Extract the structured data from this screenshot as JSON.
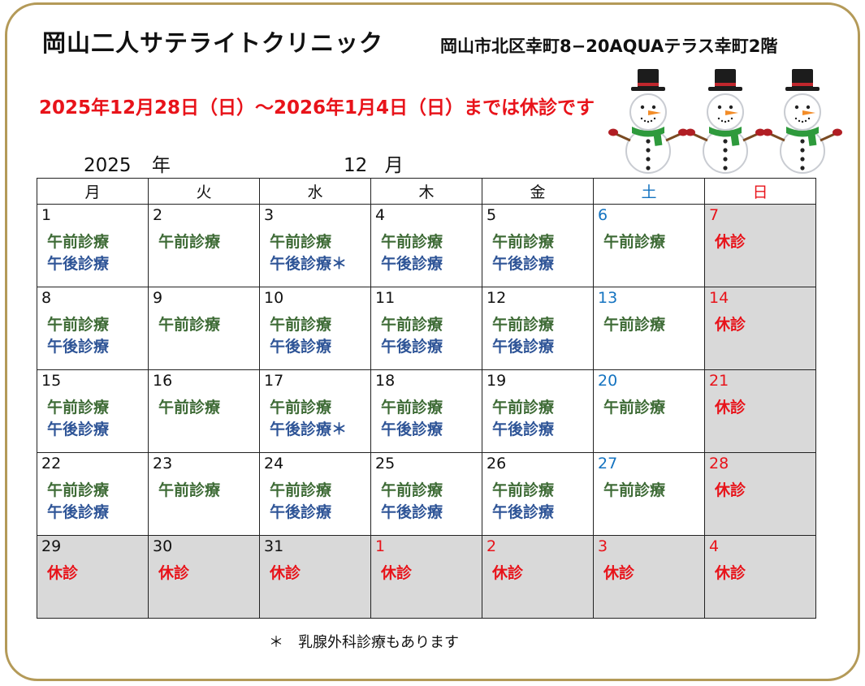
{
  "clinic_name": "岡山二人サテライトクリニック",
  "address": "岡山市北区幸町8−20AQUAテラス幸町2階",
  "notice": "2025年12月28日（日）～2026年1月4日（日）までは休診です",
  "year_num": "2025",
  "year_unit": "年",
  "month_num": "12",
  "month_unit": "月",
  "weekdays": [
    "月",
    "火",
    "水",
    "木",
    "金",
    "土",
    "日"
  ],
  "labels": {
    "am": "午前診療",
    "pm": "午後診療",
    "pm_star": "午後診療＊",
    "closed": "休診"
  },
  "weeks": [
    [
      {
        "day": "1",
        "type": "full"
      },
      {
        "day": "2",
        "type": "am"
      },
      {
        "day": "3",
        "type": "full_star"
      },
      {
        "day": "4",
        "type": "full"
      },
      {
        "day": "5",
        "type": "full"
      },
      {
        "day": "6",
        "type": "am",
        "sat": true
      },
      {
        "day": "7",
        "type": "closed",
        "sun": true
      }
    ],
    [
      {
        "day": "8",
        "type": "full"
      },
      {
        "day": "9",
        "type": "am"
      },
      {
        "day": "10",
        "type": "full"
      },
      {
        "day": "11",
        "type": "full"
      },
      {
        "day": "12",
        "type": "full"
      },
      {
        "day": "13",
        "type": "am",
        "sat": true
      },
      {
        "day": "14",
        "type": "closed",
        "sun": true
      }
    ],
    [
      {
        "day": "15",
        "type": "full"
      },
      {
        "day": "16",
        "type": "am"
      },
      {
        "day": "17",
        "type": "full_star"
      },
      {
        "day": "18",
        "type": "full"
      },
      {
        "day": "19",
        "type": "full"
      },
      {
        "day": "20",
        "type": "am",
        "sat": true
      },
      {
        "day": "21",
        "type": "closed",
        "sun": true
      }
    ],
    [
      {
        "day": "22",
        "type": "full"
      },
      {
        "day": "23",
        "type": "am"
      },
      {
        "day": "24",
        "type": "full"
      },
      {
        "day": "25",
        "type": "full"
      },
      {
        "day": "26",
        "type": "full"
      },
      {
        "day": "27",
        "type": "am",
        "sat": true
      },
      {
        "day": "28",
        "type": "closed",
        "sun": true
      }
    ],
    [
      {
        "day": "29",
        "type": "closed"
      },
      {
        "day": "30",
        "type": "closed"
      },
      {
        "day": "31",
        "type": "closed"
      },
      {
        "day": "1",
        "type": "closed",
        "red": true
      },
      {
        "day": "2",
        "type": "closed",
        "red": true
      },
      {
        "day": "3",
        "type": "closed",
        "red": true
      },
      {
        "day": "4",
        "type": "closed",
        "red": true
      }
    ]
  ],
  "footnote": "＊　乳腺外科診療もあります",
  "colors": {
    "border_gold": "#b49a58",
    "notice_red": "#e8131a",
    "saturday_blue": "#1473c0",
    "am_green": "#3e6b36",
    "pm_blue": "#2f5597",
    "closed_gray": "#d9d9d9"
  },
  "decoration": "snowmen-illustration"
}
